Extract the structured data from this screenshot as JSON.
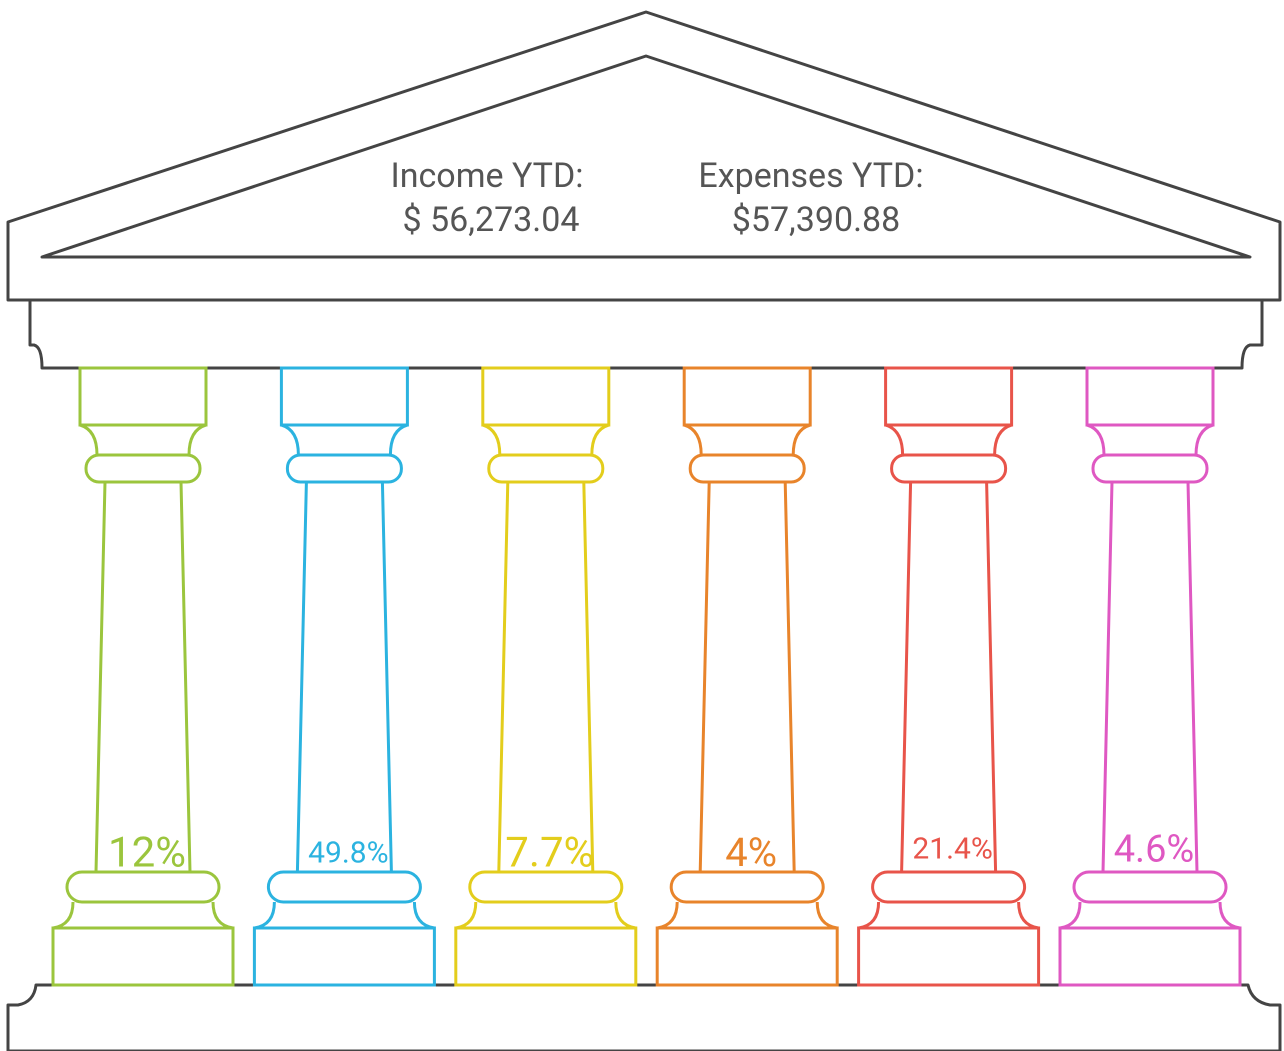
{
  "header": {
    "income": {
      "label": "Income YTD:",
      "value": "$ 56,273.04"
    },
    "expenses": {
      "label": "Expenses YTD:",
      "value": "$57,390.88"
    }
  },
  "pillars": [
    {
      "label": "12%",
      "color": "#9bc53d"
    },
    {
      "label": "49.8%",
      "color": "#2bb3e0"
    },
    {
      "label": "7.7%",
      "color": "#e3cd1c"
    },
    {
      "label": "4%",
      "color": "#e8842b"
    },
    {
      "label": "21.4%",
      "color": "#e8544a"
    },
    {
      "label": "4.6%",
      "color": "#df58c2"
    }
  ]
}
